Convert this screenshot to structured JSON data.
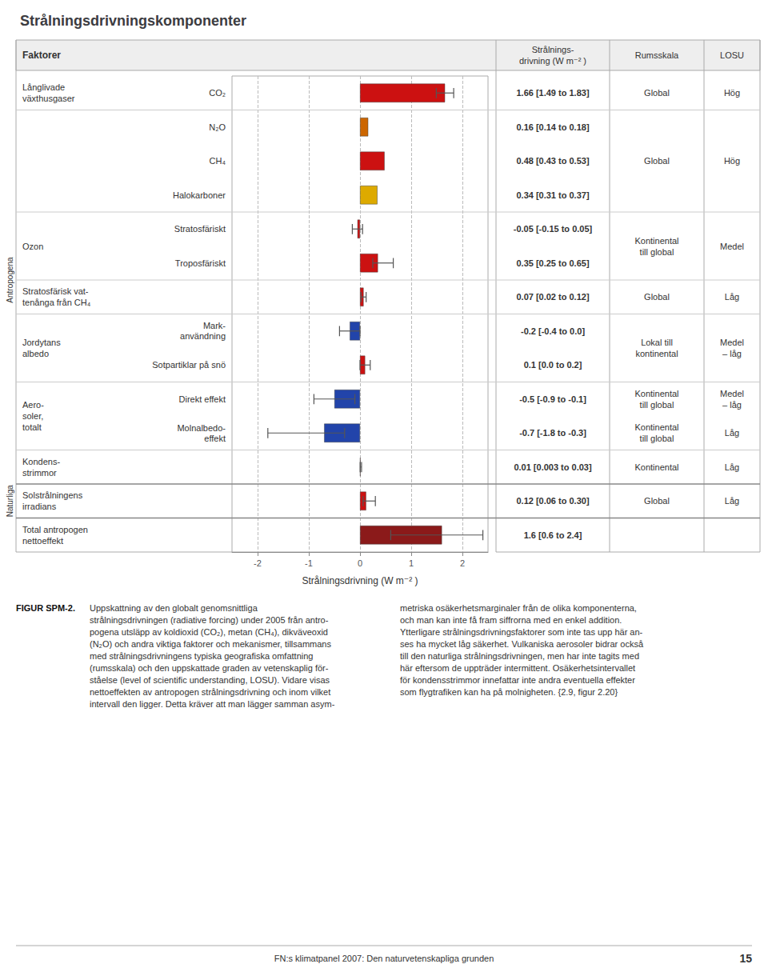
{
  "chart_data": {
    "type": "bar",
    "orientation": "horizontal",
    "title": "Strålningsdrivningskomponenter",
    "xlabel": "Strålningsdrivning (W m⁻² )",
    "xlim": [
      -2.5,
      2.5
    ],
    "xticks": [
      -2,
      -1,
      0,
      1,
      2
    ],
    "grid": true,
    "headers": {
      "factors": "Faktorer",
      "forcing": "Strålnings-\ndrivning (W m⁻² )",
      "rumsskala": "Rumsskala",
      "losu": "LOSU"
    },
    "rows": [
      {
        "label": "Långlivade\nväxthusgaser",
        "section": "Antropogena",
        "rumsskala": "Global",
        "losu": "Hög",
        "bars": [
          {
            "name": "CO₂",
            "value": 1.66,
            "error_minus": 0.17,
            "error_plus": 0.17,
            "color": "#cc1111",
            "forcing": "1.66 [1.49 to 1.83]"
          }
        ]
      },
      {
        "section": "Antropogena",
        "rumsskala": "Global",
        "losu": "Hög",
        "bars": [
          {
            "name": "N₂O",
            "value": 0.16,
            "color": "#cc6600",
            "forcing": "0.16 [0.14 to 0.18]"
          },
          {
            "name": "CH₄",
            "value": 0.48,
            "color": "#cc1111",
            "forcing": "0.48 [0.43 to 0.53]"
          },
          {
            "name": "Halokarboner",
            "value": 0.34,
            "color": "#ddaa00",
            "forcing": "0.34 [0.31 to 0.37]"
          }
        ]
      },
      {
        "label": "Ozon",
        "section": "Antropogena",
        "rumsskala": "Kontinental\ntill global",
        "losu": "Medel",
        "bars": [
          {
            "name": "Stratosfäriskt",
            "value": -0.05,
            "error_minus": 0.1,
            "error_plus": 0.1,
            "color": "#cc1111",
            "forcing": "-0.05 [-0.15 to 0.05]"
          },
          {
            "name": "Troposfäriskt",
            "value": 0.35,
            "error_minus": 0.1,
            "error_plus": 0.3,
            "color": "#cc1111",
            "forcing": "0.35 [0.25 to 0.65]"
          }
        ]
      },
      {
        "label": "Stratosfärisk vat-\ntenånga från CH₄",
        "section": "Antropogena",
        "rumsskala": "Global",
        "losu": "Låg",
        "bars": [
          {
            "value": 0.07,
            "error_minus": 0.05,
            "error_plus": 0.05,
            "color": "#cc1111",
            "forcing": "0.07 [0.02 to 0.12]"
          }
        ]
      },
      {
        "label": "Jordytans\nalbedo",
        "section": "Antropogena",
        "rumsskala": "Lokal till\nkontinental",
        "losu": "Medel\n– låg",
        "bars": [
          {
            "name": "Mark-\nanvändning",
            "value": -0.2,
            "error_minus": 0.2,
            "error_plus": 0.2,
            "color": "#2244aa",
            "forcing": "-0.2 [-0.4 to 0.0]"
          },
          {
            "name": "Sotpartiklar på snö",
            "value": 0.1,
            "error_minus": 0.1,
            "error_plus": 0.1,
            "color": "#cc1111",
            "forcing": "0.1 [0.0 to 0.2]"
          }
        ]
      },
      {
        "label": "Aero-\nsoler,\ntotalt",
        "section": "Antropogena",
        "bars": [
          {
            "name": "Direkt effekt",
            "value": -0.5,
            "error_minus": 0.4,
            "error_plus": 0.4,
            "color": "#2244aa",
            "forcing": "-0.5 [-0.9 to -0.1]",
            "rumsskala": "Kontinental\ntill global",
            "losu": "Medel\n– låg"
          },
          {
            "name": "Molnalbedo-\neffekt",
            "value": -0.7,
            "error_minus": 1.1,
            "error_plus": 0.4,
            "color": "#2244aa",
            "forcing": "-0.7 [-1.8 to -0.3]",
            "rumsskala": "Kontinental\ntill global",
            "losu": "Låg"
          }
        ]
      },
      {
        "label": "Kondens-\nstrimmor",
        "section": "Antropogena",
        "rumsskala": "Kontinental",
        "losu": "Låg",
        "bars": [
          {
            "value": 0.01,
            "error_minus": 0.007,
            "error_plus": 0.02,
            "color": "#cc1111",
            "forcing": "0.01 [0.003 to 0.03]"
          }
        ]
      },
      {
        "label": "Solstrålningens\nirradians",
        "section": "Naturliga",
        "rumsskala": "Global",
        "losu": "Låg",
        "bars": [
          {
            "value": 0.12,
            "error_minus": 0.06,
            "error_plus": 0.18,
            "color": "#cc1111",
            "forcing": "0.12 [0.06 to 0.30]"
          }
        ]
      },
      {
        "label": "Total antropogen\nnettoeffekt",
        "bars": [
          {
            "value": 1.6,
            "error_minus": 1.0,
            "error_plus": 0.8,
            "color": "#8b1a1a",
            "forcing": "1.6 [0.6 to 2.4]"
          }
        ]
      }
    ],
    "caption_bold": "FIGUR SPM-2.",
    "caption_col1": "Uppskattning av den globalt genomsnittliga\nstrålningsdrivningen (radiative forcing) under 2005 från antro-\npogena utsläpp av koldioxid (CO₂), metan (CH₄), dikväveoxid\n(N₂O) och andra viktiga faktorer och mekanismer, tillsammans\nmed strålningsdrivningens typiska geografiska omfattning\n(rumsskala) och den uppskattade graden av vetenskaplig för-\nståelse (level of scientific understanding, LOSU). Vidare visas\nnettoeffekten av antropogen strålningsdrivning och inom vilket\nintervall den ligger. Detta kräver att man lägger samman asym-",
    "caption_col2": "metriska osäkerhetsmarginaler från de olika komponenterna,\noch man kan inte få fram siffrorna med en enkel addition.\nYtterligare strålningsdrivningsfaktorer som inte tas upp här an-\nses ha mycket låg säkerhet. Vulkaniska aerosoler bidrar också\ntill den naturliga strålningsdrivningen, men har inte tagits med\nhär eftersom de uppträder intermittent. Osäkerhetsintervallet\nför kondensstrimmor innefattar inte andra eventuella effekter\nsom flygtrafiken kan ha på molnigheten. {2.9, figur 2.20}",
    "footer_left": "FN:s klimatpanel 2007: Den naturvetenskapliga grunden",
    "footer_right": "15"
  }
}
